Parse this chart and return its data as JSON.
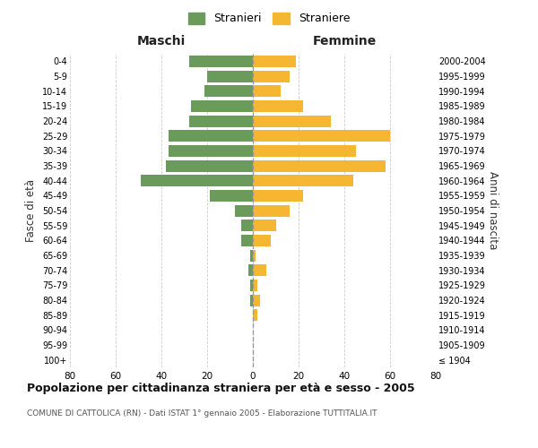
{
  "age_groups": [
    "100+",
    "95-99",
    "90-94",
    "85-89",
    "80-84",
    "75-79",
    "70-74",
    "65-69",
    "60-64",
    "55-59",
    "50-54",
    "45-49",
    "40-44",
    "35-39",
    "30-34",
    "25-29",
    "20-24",
    "15-19",
    "10-14",
    "5-9",
    "0-4"
  ],
  "birth_years": [
    "≤ 1904",
    "1905-1909",
    "1910-1914",
    "1915-1919",
    "1920-1924",
    "1925-1929",
    "1930-1934",
    "1935-1939",
    "1940-1944",
    "1945-1949",
    "1950-1954",
    "1955-1959",
    "1960-1964",
    "1965-1969",
    "1970-1974",
    "1975-1979",
    "1980-1984",
    "1985-1989",
    "1990-1994",
    "1995-1999",
    "2000-2004"
  ],
  "males": [
    0,
    0,
    0,
    0,
    1,
    1,
    2,
    1,
    5,
    5,
    8,
    19,
    49,
    38,
    37,
    37,
    28,
    27,
    21,
    20,
    28
  ],
  "females": [
    0,
    0,
    0,
    2,
    3,
    2,
    6,
    1,
    8,
    10,
    16,
    22,
    44,
    58,
    45,
    60,
    34,
    22,
    12,
    16,
    19
  ],
  "male_color": "#6a9b5a",
  "female_color": "#f5b731",
  "background_color": "#ffffff",
  "grid_color": "#cccccc",
  "title": "Popolazione per cittadinanza straniera per età e sesso - 2005",
  "subtitle": "COMUNE DI CATTOLICA (RN) - Dati ISTAT 1° gennaio 2005 - Elaborazione TUTTITALIA.IT",
  "xlabel_left": "Maschi",
  "xlabel_right": "Femmine",
  "ylabel_left": "Fasce di età",
  "ylabel_right": "Anni di nascita",
  "legend_male": "Stranieri",
  "legend_female": "Straniere",
  "xlim": 80,
  "dashed_line_color": "#999999"
}
